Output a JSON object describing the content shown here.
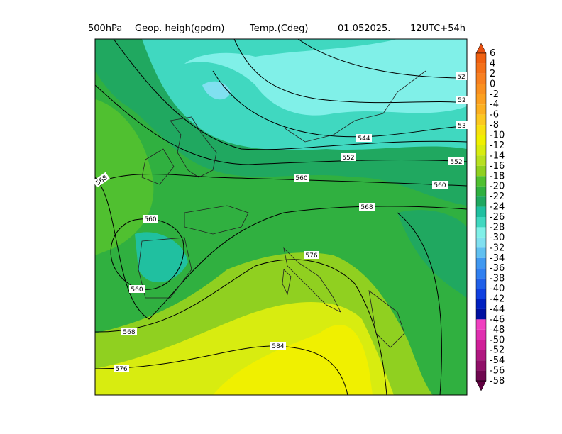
{
  "header": {
    "items": [
      "500hPa",
      "Geop. heigh(gpdm)",
      "Temp.(Cdeg)",
      "01.052025.",
      "12UTC+54h"
    ]
  },
  "legend": {
    "labels": [
      6,
      4,
      2,
      0,
      -2,
      -4,
      -6,
      -8,
      -10,
      -12,
      -14,
      -16,
      -18,
      -20,
      -22,
      -24,
      -26,
      -28,
      -30,
      -32,
      -34,
      -36,
      -38,
      -40,
      -42,
      -44,
      -46,
      -48,
      -50,
      -52,
      -54,
      -56,
      -58
    ]
  },
  "contour_labels": [
    "52",
    "52",
    "53",
    "544",
    "552",
    "552",
    "560",
    "560",
    "568",
    "568",
    "560",
    "560",
    "576",
    "568",
    "584",
    "576"
  ]
}
